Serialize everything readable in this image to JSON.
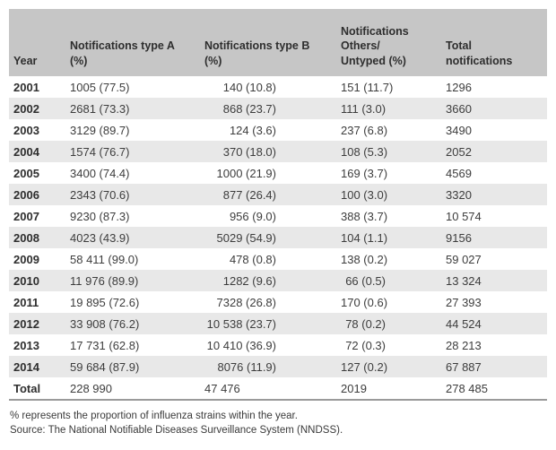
{
  "colors": {
    "header_bg": "#c6c6c6",
    "stripe_bg": "#e8e8e8",
    "bottom_rule": "#9a9a9a",
    "text": "#3d3d3d"
  },
  "table": {
    "columns": [
      {
        "key": "year",
        "label": "Year"
      },
      {
        "key": "type_a",
        "label": "Notifications type A\n(%)"
      },
      {
        "key": "type_b",
        "label": "Notifications type B\n(%)"
      },
      {
        "key": "others",
        "label": "Notifications\nOthers/\nUntyped (%)"
      },
      {
        "key": "total",
        "label": "Total\nnotifications"
      }
    ],
    "rows": [
      {
        "year": "2001",
        "type_a": "1005 (77.5)",
        "type_b": "140 (10.8)",
        "others": "151 (11.7)",
        "total": "1296"
      },
      {
        "year": "2002",
        "type_a": "2681 (73.3)",
        "type_b": "868 (23.7)",
        "others": "111 (3.0)",
        "total": "3660"
      },
      {
        "year": "2003",
        "type_a": "3129 (89.7)",
        "type_b": "124 (3.6)",
        "others": "237 (6.8)",
        "total": "3490"
      },
      {
        "year": "2004",
        "type_a": "1574 (76.7)",
        "type_b": "370 (18.0)",
        "others": "108 (5.3)",
        "total": "2052"
      },
      {
        "year": "2005",
        "type_a": "3400 (74.4)",
        "type_b": "1000 (21.9)",
        "others": "169 (3.7)",
        "total": "4569"
      },
      {
        "year": "2006",
        "type_a": "2343 (70.6)",
        "type_b": "877 (26.4)",
        "others": "100 (3.0)",
        "total": "3320"
      },
      {
        "year": "2007",
        "type_a": "9230 (87.3)",
        "type_b": "956 (9.0)",
        "others": "388 (3.7)",
        "total": "10 574"
      },
      {
        "year": "2008",
        "type_a": "4023 (43.9)",
        "type_b": "5029 (54.9)",
        "others": "104 (1.1)",
        "total": "9156"
      },
      {
        "year": "2009",
        "type_a": "58 411 (99.0)",
        "type_b": "478 (0.8)",
        "others": "138 (0.2)",
        "total": "59 027"
      },
      {
        "year": "2010",
        "type_a": "11 976 (89.9)",
        "type_b": "1282 (9.6)",
        "others": "66 (0.5)",
        "total": "13 324"
      },
      {
        "year": "2011",
        "type_a": "19 895 (72.6)",
        "type_b": "7328 (26.8)",
        "others": "170 (0.6)",
        "total": "27 393"
      },
      {
        "year": "2012",
        "type_a": "33 908 (76.2)",
        "type_b": "10 538 (23.7)",
        "others": "78 (0.2)",
        "total": "44 524"
      },
      {
        "year": "2013",
        "type_a": "17 731 (62.8)",
        "type_b": "10 410 (36.9)",
        "others": "72 (0.3)",
        "total": "28 213"
      },
      {
        "year": "2014",
        "type_a": "59 684 (87.9)",
        "type_b": "8076 (11.9)",
        "others": "127 (0.2)",
        "total": "67 887"
      }
    ],
    "total_row": {
      "year": "Total",
      "type_a": "228 990",
      "type_b": "47 476",
      "others": "2019",
      "total": "278 485"
    }
  },
  "footnotes": [
    "% represents the proportion of influenza strains within the year.",
    "Source: The National Notifiable Diseases Surveillance System (NNDSS)."
  ]
}
